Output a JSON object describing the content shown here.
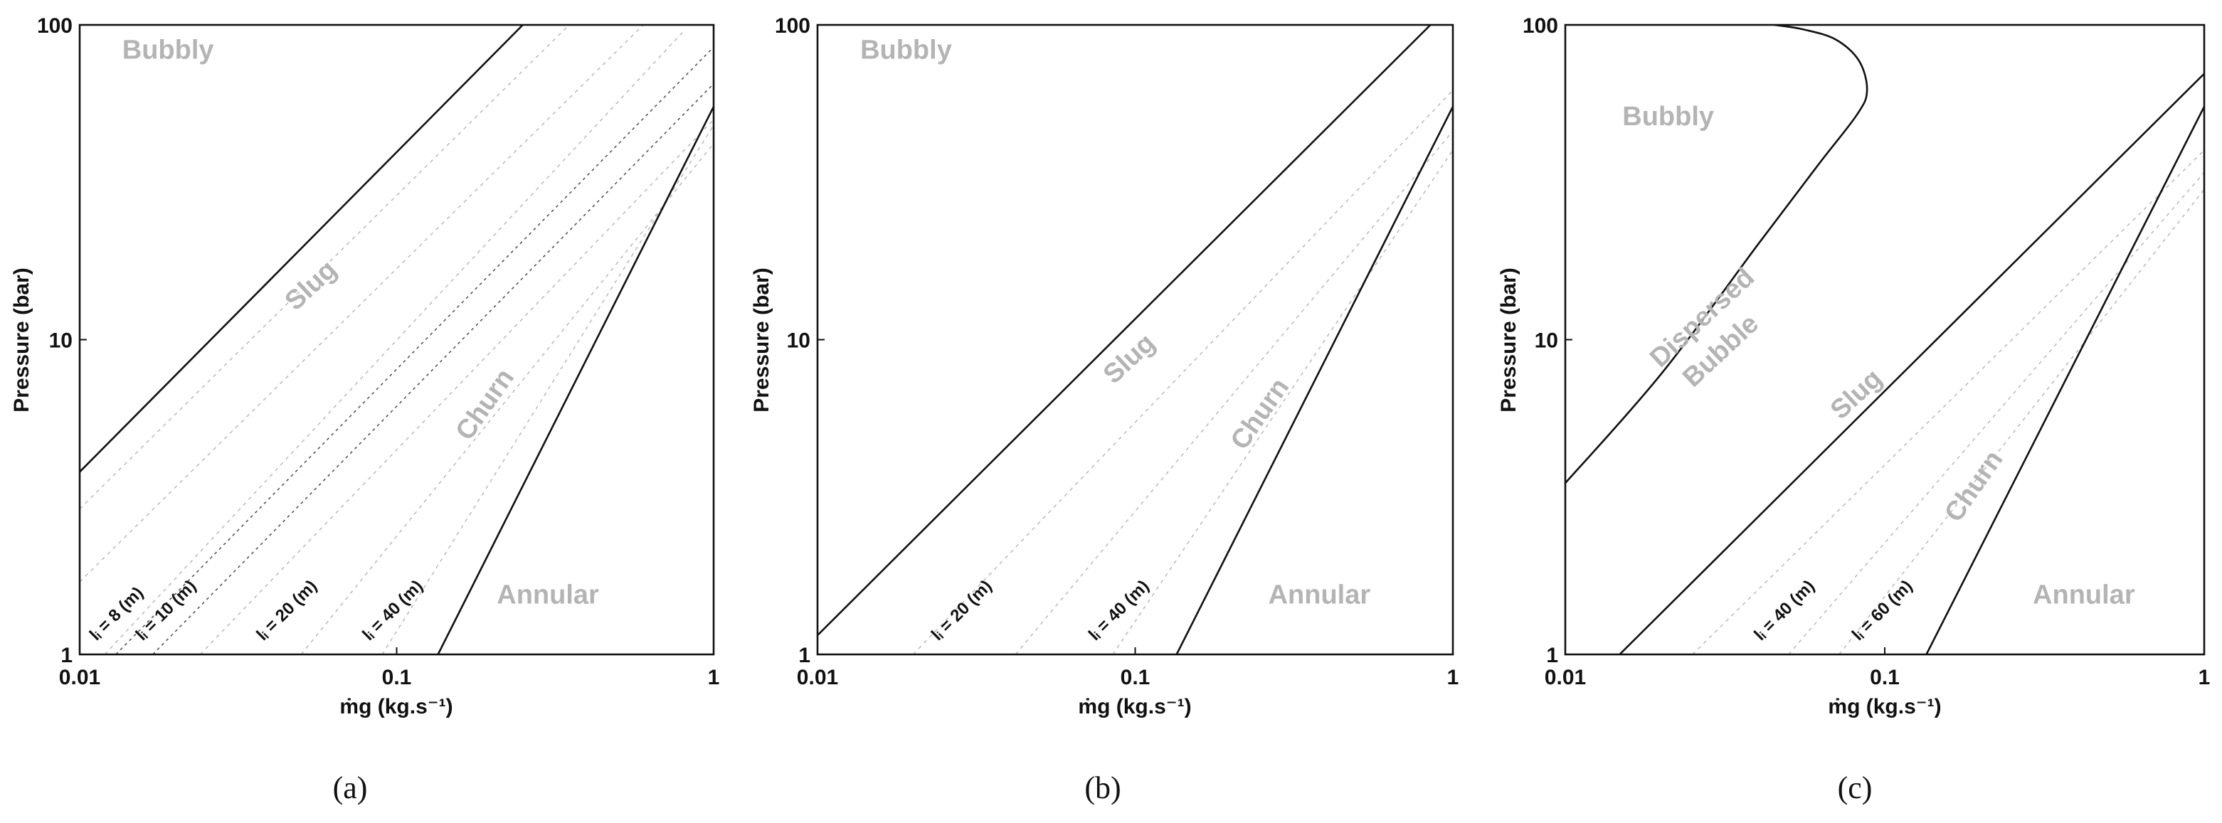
{
  "chart_data": [
    {
      "type": "line",
      "panel_label": "(a)",
      "x_scale": "log",
      "y_scale": "log",
      "xlim": [
        0.01,
        1
      ],
      "ylim": [
        1,
        100
      ],
      "x_ticks": [
        "0.01",
        "0.1",
        "1"
      ],
      "y_ticks": [
        "1",
        "10",
        "100"
      ],
      "xlabel": "ṁg (kg.s⁻¹)",
      "ylabel": "Pressure (bar)",
      "regions": [
        {
          "label": "Bubbly",
          "x": 0.019,
          "y": 78
        },
        {
          "label": "Slug",
          "x": 0.056,
          "y": 14.2,
          "angle": -43
        },
        {
          "label": "Churn",
          "x": 0.2,
          "y": 6.0,
          "angle": -55
        },
        {
          "label": "Annular",
          "x": 0.3,
          "y": 1.45
        }
      ],
      "boundaries": [
        {
          "name": "Bubbly–Slug",
          "points": [
            [
              0.01,
              3.8
            ],
            [
              0.25,
              100
            ]
          ]
        },
        {
          "name": "Churn–Annular",
          "points": [
            [
              0.135,
              1
            ],
            [
              1,
              55
            ]
          ]
        }
      ],
      "length_lines": [
        {
          "label": "lᵢ = 8 (m)",
          "points": [
            [
              0.01,
              1.7
            ],
            [
              0.6,
              100
            ]
          ],
          "style": "light"
        },
        {
          "label": "lᵢ = 10 (m)",
          "points": [
            [
              0.012,
              1.0
            ],
            [
              0.8,
              95
            ]
          ],
          "style": "light"
        },
        {
          "label": "",
          "points": [
            [
              0.01,
              2.9
            ],
            [
              0.35,
              100
            ]
          ],
          "style": "light"
        },
        {
          "label": "",
          "points": [
            [
              0.013,
              1.0
            ],
            [
              1.0,
              85
            ]
          ],
          "style": "dark"
        },
        {
          "label": "",
          "points": [
            [
              0.017,
              1.0
            ],
            [
              1.0,
              65
            ]
          ],
          "style": "dark"
        },
        {
          "label": "lᵢ = 20 (m)",
          "points": [
            [
              0.024,
              1.0
            ],
            [
              1.0,
              50
            ]
          ],
          "style": "light"
        },
        {
          "label": "lᵢ = 40 (m)",
          "points": [
            [
              0.05,
              1.0
            ],
            [
              1.0,
              42
            ]
          ],
          "style": "light"
        },
        {
          "label": "",
          "points": [
            [
              0.09,
              1.0
            ],
            [
              1.0,
              48
            ]
          ],
          "style": "light"
        }
      ],
      "length_label_positions": [
        {
          "text": "lᵢ = 8 (m)",
          "x": 0.0113,
          "y": 1.1
        },
        {
          "text": "lᵢ = 10 (m)",
          "x": 0.0158,
          "y": 1.1
        },
        {
          "text": "lᵢ = 20 (m)",
          "x": 0.038,
          "y": 1.1
        },
        {
          "text": "lᵢ = 40 (m)",
          "x": 0.082,
          "y": 1.1
        }
      ]
    },
    {
      "type": "line",
      "panel_label": "(b)",
      "x_scale": "log",
      "y_scale": "log",
      "xlim": [
        0.01,
        1
      ],
      "ylim": [
        1,
        100
      ],
      "x_ticks": [
        "0.01",
        "0.1",
        "1"
      ],
      "y_ticks": [
        "1",
        "10",
        "100"
      ],
      "xlabel": "ṁg (kg.s⁻¹)",
      "ylabel": "Pressure (bar)",
      "regions": [
        {
          "label": "Bubbly",
          "x": 0.019,
          "y": 78
        },
        {
          "label": "Slug",
          "x": 0.1,
          "y": 8.3,
          "angle": -43
        },
        {
          "label": "Churn",
          "x": 0.26,
          "y": 5.6,
          "angle": -55
        },
        {
          "label": "Annular",
          "x": 0.38,
          "y": 1.45
        }
      ],
      "boundaries": [
        {
          "name": "Bubbly–Slug",
          "points": [
            [
              0.01,
              1.15
            ],
            [
              0.85,
              100
            ]
          ]
        },
        {
          "name": "Churn–Annular",
          "points": [
            [
              0.135,
              1
            ],
            [
              1,
              55
            ]
          ]
        }
      ],
      "length_lines": [
        {
          "label": "lᵢ = 20 (m)",
          "points": [
            [
              0.02,
              1.0
            ],
            [
              1.0,
              62
            ]
          ],
          "style": "light"
        },
        {
          "label": "lᵢ = 40 (m)",
          "points": [
            [
              0.042,
              1.0
            ],
            [
              1.0,
              46
            ]
          ],
          "style": "light"
        },
        {
          "label": "",
          "points": [
            [
              0.085,
              1.0
            ],
            [
              1.0,
              40
            ]
          ],
          "style": "light"
        }
      ],
      "length_label_positions": [
        {
          "text": "lᵢ = 20 (m)",
          "x": 0.024,
          "y": 1.1
        },
        {
          "text": "lᵢ = 40 (m)",
          "x": 0.075,
          "y": 1.1
        }
      ]
    },
    {
      "type": "line",
      "panel_label": "(c)",
      "x_scale": "log",
      "y_scale": "log",
      "xlim": [
        0.01,
        1
      ],
      "ylim": [
        1,
        100
      ],
      "x_ticks": [
        "0.01",
        "0.1",
        "1"
      ],
      "y_ticks": [
        "1",
        "10",
        "100"
      ],
      "xlabel": "ṁg (kg.s⁻¹)",
      "ylabel": "Pressure (bar)",
      "regions": [
        {
          "label": "Bubbly",
          "x": 0.021,
          "y": 48
        },
        {
          "label": "Dispersed",
          "x": 0.028,
          "y": 11.2,
          "angle": -43
        },
        {
          "label": "Bubble",
          "x": 0.032,
          "y": 8.8,
          "angle": -43
        },
        {
          "label": "Slug",
          "x": 0.085,
          "y": 6.4,
          "angle": -43
        },
        {
          "label": "Churn",
          "x": 0.2,
          "y": 3.3,
          "angle": -55
        },
        {
          "label": "Annular",
          "x": 0.42,
          "y": 1.45
        }
      ],
      "boundaries": [
        {
          "name": "Bubbly–Dispersed Bubble",
          "points": [
            [
              0.01,
              3.5
            ],
            [
              0.02,
              7.8
            ],
            [
              0.04,
              20.0
            ],
            [
              0.062,
              36.0
            ],
            [
              0.082,
              52.0
            ],
            [
              0.088,
              62.0
            ],
            [
              0.083,
              77.0
            ],
            [
              0.07,
              90.0
            ],
            [
              0.055,
              97.0
            ],
            [
              0.045,
              100.0
            ]
          ]
        },
        {
          "name": "Dispersed Bubble–Slug",
          "points": [
            [
              0.0148,
              1.0
            ],
            [
              1.0,
              70.0
            ]
          ]
        },
        {
          "name": "Churn–Annular",
          "points": [
            [
              0.135,
              1.0
            ],
            [
              1.0,
              55.0
            ]
          ]
        }
      ],
      "length_lines": [
        {
          "label": "lᵢ = 40 (m)",
          "points": [
            [
              0.025,
              1.0
            ],
            [
              1.0,
              40
            ]
          ],
          "style": "light"
        },
        {
          "label": "lᵢ = 60 (m)",
          "points": [
            [
              0.05,
              1.0
            ],
            [
              1.0,
              34
            ]
          ],
          "style": "light"
        },
        {
          "label": "",
          "points": [
            [
              0.072,
              1.0
            ],
            [
              1.0,
              30
            ]
          ],
          "style": "light"
        }
      ],
      "length_label_positions": [
        {
          "text": "lᵢ = 40 (m)",
          "x": 0.041,
          "y": 1.1
        },
        {
          "text": "lᵢ = 60 (m)",
          "x": 0.083,
          "y": 1.1
        }
      ]
    }
  ]
}
